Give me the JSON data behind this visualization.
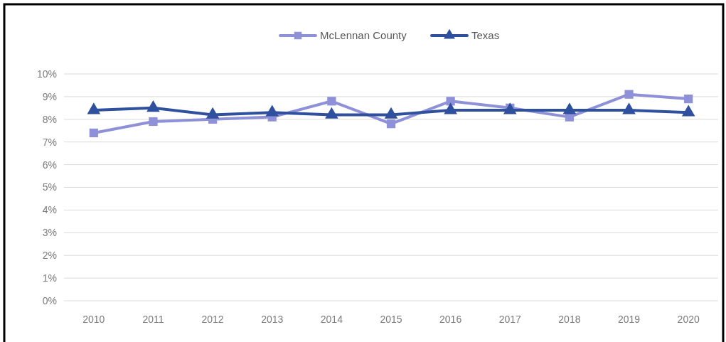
{
  "chart_data": {
    "type": "line",
    "categories": [
      "2010",
      "2011",
      "2012",
      "2013",
      "2014",
      "2015",
      "2016",
      "2017",
      "2018",
      "2019",
      "2020"
    ],
    "series": [
      {
        "name": "McLennan County",
        "color": "#8f91d8",
        "marker": "square",
        "values": [
          7.4,
          7.9,
          8.0,
          8.1,
          8.8,
          7.8,
          8.8,
          8.5,
          8.1,
          9.1,
          8.9
        ]
      },
      {
        "name": "Texas",
        "color": "#2f4f9f",
        "marker": "triangle",
        "values": [
          8.4,
          8.5,
          8.2,
          8.3,
          8.2,
          8.2,
          8.4,
          8.4,
          8.4,
          8.4,
          8.3
        ]
      }
    ],
    "ylim": [
      0,
      10
    ],
    "yticks": [
      {
        "value": 0,
        "label": "0%"
      },
      {
        "value": 1,
        "label": "1%"
      },
      {
        "value": 2,
        "label": "2%"
      },
      {
        "value": 3,
        "label": "3%"
      },
      {
        "value": 4,
        "label": "4%"
      },
      {
        "value": 5,
        "label": "5%"
      },
      {
        "value": 6,
        "label": "6%"
      },
      {
        "value": 7,
        "label": "7%"
      },
      {
        "value": 8,
        "label": "8%"
      },
      {
        "value": 9,
        "label": "9%"
      },
      {
        "value": 10,
        "label": "10%"
      }
    ],
    "grid": "y",
    "legend": "top",
    "line_style": "solid"
  }
}
